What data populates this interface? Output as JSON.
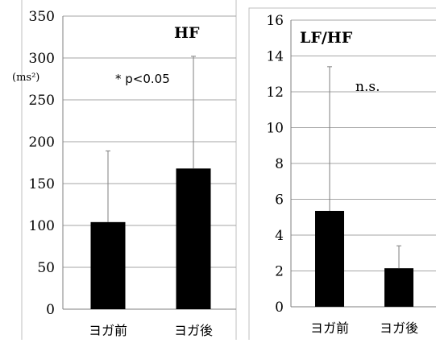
{
  "chart_data": [
    {
      "type": "bar",
      "title": "HF",
      "unit": "(ms²)",
      "categories": [
        "ヨガ前",
        "ヨガ後"
      ],
      "values": [
        104,
        168
      ],
      "error_upper": [
        189,
        302
      ],
      "annotation": "* p<0.05",
      "ylim": [
        0,
        350
      ],
      "ytick_step": 50,
      "ytick_labels": [
        "0",
        "50",
        "100",
        "150",
        "200",
        "250",
        "300",
        "350"
      ],
      "grid": true,
      "bar_color": "#000000",
      "grid_color": "#a6a6a6"
    },
    {
      "type": "bar",
      "title": "LF/HF",
      "categories": [
        "ヨガ前",
        "ヨガ後"
      ],
      "values": [
        5.35,
        2.15
      ],
      "error_upper": [
        13.4,
        3.4
      ],
      "annotation": "n.s.",
      "ylim": [
        0,
        16
      ],
      "ytick_step": 2,
      "ytick_labels": [
        "0",
        "2",
        "4",
        "6",
        "8",
        "10",
        "12",
        "14",
        "16"
      ],
      "grid": true,
      "bar_color": "#000000",
      "grid_color": "#a6a6a6"
    }
  ]
}
